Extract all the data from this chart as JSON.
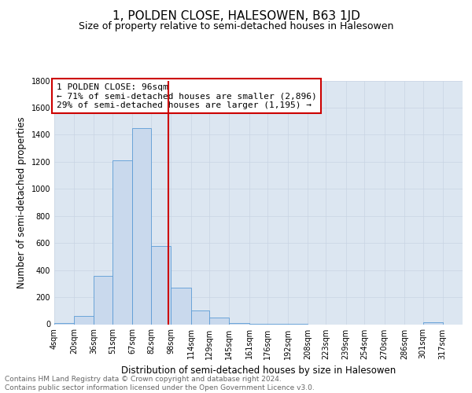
{
  "title": "1, POLDEN CLOSE, HALESOWEN, B63 1JD",
  "subtitle": "Size of property relative to semi-detached houses in Halesowen",
  "xlabel": "Distribution of semi-detached houses by size in Halesowen",
  "ylabel": "Number of semi-detached properties",
  "footer_line1": "Contains HM Land Registry data © Crown copyright and database right 2024.",
  "footer_line2": "Contains public sector information licensed under the Open Government Licence v3.0.",
  "annotation_line1": "1 POLDEN CLOSE: 96sqm",
  "annotation_line2": "← 71% of semi-detached houses are smaller (2,896)",
  "annotation_line3": "29% of semi-detached houses are larger (1,195) →",
  "property_size": 96,
  "bar_left_edges": [
    4,
    20,
    36,
    51,
    67,
    82,
    98,
    114,
    129,
    145,
    161,
    176,
    192,
    208,
    223,
    239,
    254,
    270,
    286,
    301
  ],
  "bar_heights": [
    10,
    60,
    360,
    1210,
    1450,
    575,
    270,
    100,
    50,
    10,
    5,
    2,
    1,
    0,
    0,
    0,
    0,
    0,
    0,
    15
  ],
  "bar_widths": [
    16,
    16,
    15,
    16,
    15,
    16,
    16,
    15,
    16,
    16,
    15,
    16,
    16,
    15,
    16,
    15,
    16,
    16,
    15,
    16
  ],
  "xtick_labels": [
    "4sqm",
    "20sqm",
    "36sqm",
    "51sqm",
    "67sqm",
    "82sqm",
    "98sqm",
    "114sqm",
    "129sqm",
    "145sqm",
    "161sqm",
    "176sqm",
    "192sqm",
    "208sqm",
    "223sqm",
    "239sqm",
    "254sqm",
    "270sqm",
    "286sqm",
    "301sqm",
    "317sqm"
  ],
  "xtick_positions": [
    4,
    20,
    36,
    51,
    67,
    82,
    98,
    114,
    129,
    145,
    161,
    176,
    192,
    208,
    223,
    239,
    254,
    270,
    286,
    301,
    317
  ],
  "ylim": [
    0,
    1800
  ],
  "yticks": [
    0,
    200,
    400,
    600,
    800,
    1000,
    1200,
    1400,
    1600,
    1800
  ],
  "xlim_left": 4,
  "xlim_right": 333,
  "bar_color": "#c9d9ed",
  "bar_edge_color": "#5b9bd5",
  "grid_color": "#c8d4e3",
  "vline_color": "#cc0000",
  "annotation_box_edge_color": "#cc0000",
  "background_color": "#dce6f1",
  "title_fontsize": 11,
  "subtitle_fontsize": 9,
  "annotation_fontsize": 8,
  "tick_fontsize": 7,
  "ylabel_fontsize": 8.5,
  "xlabel_fontsize": 8.5,
  "footer_fontsize": 6.5
}
